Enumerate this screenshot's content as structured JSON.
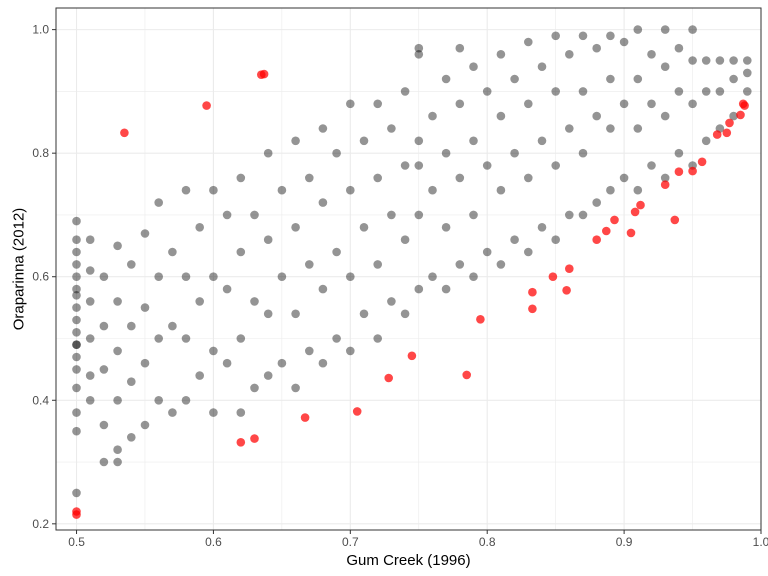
{
  "chart_data": {
    "type": "scatter",
    "title": "",
    "xlabel": "Gum Creek (1996)",
    "ylabel": "Oraparinna (2012)",
    "xlim": [
      0.485,
      1.0
    ],
    "ylim": [
      0.19,
      1.035
    ],
    "x_ticks": [
      0.5,
      0.6,
      0.7,
      0.8,
      0.9,
      1.0
    ],
    "x_tick_labels": [
      "0.5",
      "0.6",
      "0.7",
      "0.8",
      "0.9",
      "1.0"
    ],
    "y_ticks": [
      0.2,
      0.4,
      0.6,
      0.8,
      1.0
    ],
    "y_tick_labels": [
      "0.2",
      "0.4",
      "0.6",
      "0.8",
      "1.0"
    ],
    "grid": true,
    "legend": "none",
    "colors": {
      "main": "#000000",
      "highlight": "#ff0000",
      "grid": "#ebebeb"
    },
    "series": [
      {
        "color": "#000000",
        "x": [
          0.5,
          0.5,
          0.5,
          0.5,
          0.5,
          0.5,
          0.5,
          0.5,
          0.5,
          0.5,
          0.5,
          0.5,
          0.5,
          0.5,
          0.5,
          0.5,
          0.51,
          0.51,
          0.51,
          0.51,
          0.51,
          0.51,
          0.52,
          0.52,
          0.52,
          0.52,
          0.53,
          0.53,
          0.53,
          0.53,
          0.53,
          0.54,
          0.54,
          0.54,
          0.54,
          0.55,
          0.55,
          0.55,
          0.55,
          0.56,
          0.56,
          0.56,
          0.56,
          0.57,
          0.57,
          0.57,
          0.58,
          0.58,
          0.58,
          0.58,
          0.59,
          0.59,
          0.59,
          0.6,
          0.6,
          0.6,
          0.6,
          0.61,
          0.61,
          0.61,
          0.62,
          0.62,
          0.62,
          0.62,
          0.63,
          0.63,
          0.63,
          0.64,
          0.64,
          0.64,
          0.64,
          0.65,
          0.65,
          0.65,
          0.66,
          0.66,
          0.66,
          0.66,
          0.67,
          0.67,
          0.67,
          0.68,
          0.68,
          0.68,
          0.68,
          0.69,
          0.69,
          0.69,
          0.7,
          0.7,
          0.7,
          0.7,
          0.71,
          0.71,
          0.71,
          0.72,
          0.72,
          0.72,
          0.72,
          0.73,
          0.73,
          0.73,
          0.74,
          0.74,
          0.74,
          0.74,
          0.75,
          0.75,
          0.75,
          0.75,
          0.76,
          0.76,
          0.76,
          0.77,
          0.77,
          0.77,
          0.77,
          0.78,
          0.78,
          0.78,
          0.79,
          0.79,
          0.79,
          0.79,
          0.8,
          0.8,
          0.8,
          0.81,
          0.81,
          0.81,
          0.81,
          0.82,
          0.82,
          0.82,
          0.83,
          0.83,
          0.83,
          0.83,
          0.84,
          0.84,
          0.84,
          0.85,
          0.85,
          0.85,
          0.85,
          0.86,
          0.86,
          0.86,
          0.87,
          0.87,
          0.87,
          0.87,
          0.88,
          0.88,
          0.88,
          0.89,
          0.89,
          0.89,
          0.89,
          0.9,
          0.9,
          0.9,
          0.91,
          0.91,
          0.91,
          0.91,
          0.92,
          0.92,
          0.92,
          0.93,
          0.93,
          0.93,
          0.93,
          0.94,
          0.94,
          0.94,
          0.95,
          0.95,
          0.95,
          0.95,
          0.96,
          0.96,
          0.96,
          0.97,
          0.97,
          0.97,
          0.98,
          0.98,
          0.98,
          0.99,
          0.99,
          0.99,
          0.52,
          0.53,
          0.75,
          0.78,
          0.75,
          0.5,
          0.5
        ],
        "y": [
          0.38,
          0.42,
          0.47,
          0.51,
          0.55,
          0.58,
          0.62,
          0.66,
          0.69,
          0.45,
          0.49,
          0.53,
          0.57,
          0.6,
          0.64,
          0.35,
          0.4,
          0.44,
          0.5,
          0.56,
          0.61,
          0.66,
          0.36,
          0.45,
          0.52,
          0.6,
          0.32,
          0.4,
          0.48,
          0.56,
          0.65,
          0.34,
          0.43,
          0.52,
          0.62,
          0.36,
          0.46,
          0.55,
          0.67,
          0.4,
          0.5,
          0.6,
          0.72,
          0.38,
          0.52,
          0.64,
          0.4,
          0.5,
          0.6,
          0.74,
          0.44,
          0.56,
          0.68,
          0.38,
          0.48,
          0.6,
          0.74,
          0.46,
          0.58,
          0.7,
          0.38,
          0.5,
          0.64,
          0.76,
          0.42,
          0.56,
          0.7,
          0.44,
          0.54,
          0.66,
          0.8,
          0.46,
          0.6,
          0.74,
          0.42,
          0.54,
          0.68,
          0.82,
          0.48,
          0.62,
          0.76,
          0.46,
          0.58,
          0.72,
          0.84,
          0.5,
          0.64,
          0.8,
          0.48,
          0.6,
          0.74,
          0.88,
          0.54,
          0.68,
          0.82,
          0.5,
          0.62,
          0.76,
          0.88,
          0.56,
          0.7,
          0.84,
          0.54,
          0.66,
          0.78,
          0.9,
          0.58,
          0.7,
          0.82,
          0.96,
          0.6,
          0.74,
          0.86,
          0.58,
          0.68,
          0.8,
          0.92,
          0.62,
          0.76,
          0.88,
          0.6,
          0.7,
          0.82,
          0.94,
          0.64,
          0.78,
          0.9,
          0.62,
          0.74,
          0.86,
          0.96,
          0.66,
          0.8,
          0.92,
          0.64,
          0.76,
          0.88,
          0.98,
          0.68,
          0.82,
          0.94,
          0.66,
          0.78,
          0.9,
          0.99,
          0.7,
          0.84,
          0.96,
          0.7,
          0.8,
          0.9,
          0.99,
          0.72,
          0.86,
          0.97,
          0.74,
          0.84,
          0.92,
          0.99,
          0.76,
          0.88,
          0.98,
          0.74,
          0.84,
          0.92,
          1.0,
          0.78,
          0.88,
          0.96,
          0.76,
          0.86,
          0.94,
          1.0,
          0.8,
          0.9,
          0.97,
          0.78,
          0.88,
          0.95,
          1.0,
          0.82,
          0.9,
          0.95,
          0.84,
          0.9,
          0.95,
          0.86,
          0.92,
          0.95,
          0.9,
          0.93,
          0.95,
          0.3,
          0.3,
          0.97,
          0.97,
          0.78,
          0.49,
          0.25
        ]
      },
      {
        "color": "#ff0000",
        "x": [
          0.5,
          0.5,
          0.535,
          0.595,
          0.635,
          0.637,
          0.62,
          0.63,
          0.667,
          0.705,
          0.728,
          0.745,
          0.785,
          0.795,
          0.833,
          0.833,
          0.848,
          0.858,
          0.86,
          0.88,
          0.887,
          0.893,
          0.905,
          0.908,
          0.912,
          0.93,
          0.937,
          0.94,
          0.95,
          0.957,
          0.968,
          0.975,
          0.977,
          0.985,
          0.987,
          0.988
        ],
        "y": [
          0.215,
          0.22,
          0.833,
          0.877,
          0.927,
          0.928,
          0.332,
          0.338,
          0.372,
          0.382,
          0.436,
          0.472,
          0.441,
          0.531,
          0.548,
          0.575,
          0.6,
          0.578,
          0.613,
          0.66,
          0.674,
          0.692,
          0.671,
          0.705,
          0.716,
          0.749,
          0.692,
          0.77,
          0.771,
          0.786,
          0.83,
          0.833,
          0.849,
          0.862,
          0.88,
          0.877
        ]
      }
    ]
  }
}
